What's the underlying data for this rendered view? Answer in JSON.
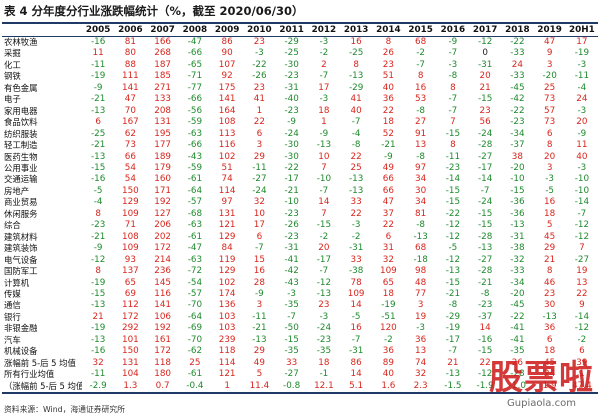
{
  "title": "表 4 分年度分行业涨跌幅统计（%，截至 2020/06/30）",
  "colors": {
    "pos": "#d9251d",
    "neg": "#1f8a2e",
    "neutral": "#222222"
  },
  "table": {
    "headers": [
      "",
      "2005",
      "2006",
      "2007",
      "2008",
      "2009",
      "2010",
      "2011",
      "2012",
      "2013",
      "2014",
      "2015",
      "2016",
      "2017",
      "2018",
      "2019",
      "20H1"
    ],
    "rows": [
      {
        "label": "农林牧渔",
        "values": [
          "-16",
          "81",
          "166",
          "-47",
          "86",
          "23",
          "-29",
          "-3",
          "16",
          "8",
          "68",
          "-9",
          "-12",
          "-22",
          "47",
          "17"
        ]
      },
      {
        "label": "采掘",
        "values": [
          "11",
          "80",
          "268",
          "-66",
          "90",
          "-3",
          "-25",
          "-2",
          "-25",
          "26",
          "-2",
          "-7",
          "0",
          "-33",
          "9",
          "-19"
        ]
      },
      {
        "label": "化工",
        "values": [
          "-11",
          "88",
          "187",
          "-65",
          "107",
          "-22",
          "-30",
          "2",
          "8",
          "23",
          "-7",
          "-3",
          "-31",
          "24",
          "3",
          "-3"
        ]
      },
      {
        "label": "钢铁",
        "values": [
          "-19",
          "111",
          "185",
          "-71",
          "92",
          "-26",
          "-23",
          "-7",
          "-13",
          "51",
          "8",
          "-8",
          "20",
          "-33",
          "-20",
          "-11"
        ]
      },
      {
        "label": "有色金属",
        "values": [
          "-9",
          "141",
          "271",
          "-77",
          "175",
          "23",
          "-31",
          "17",
          "-29",
          "40",
          "16",
          "8",
          "21",
          "-45",
          "25",
          "-4"
        ]
      },
      {
        "label": "电子",
        "values": [
          "-21",
          "47",
          "133",
          "-66",
          "141",
          "41",
          "-40",
          "-3",
          "41",
          "36",
          "53",
          "-7",
          "-15",
          "-42",
          "73",
          "24"
        ]
      },
      {
        "label": "家用电器",
        "values": [
          "-13",
          "70",
          "208",
          "-56",
          "164",
          "1",
          "-23",
          "18",
          "40",
          "22",
          "-8",
          "-7",
          "23",
          "-22",
          "57",
          "-3"
        ]
      },
      {
        "label": "食品饮料",
        "values": [
          "6",
          "167",
          "131",
          "-59",
          "108",
          "22",
          "-9",
          "1",
          "-7",
          "18",
          "27",
          "7",
          "56",
          "-23",
          "73",
          "20"
        ]
      },
      {
        "label": "纺织服装",
        "values": [
          "-25",
          "62",
          "195",
          "-63",
          "113",
          "6",
          "-24",
          "-9",
          "-4",
          "52",
          "91",
          "-15",
          "-24",
          "-34",
          "6",
          "-9"
        ]
      },
      {
        "label": "轻工制造",
        "values": [
          "-21",
          "73",
          "177",
          "-66",
          "116",
          "3",
          "-30",
          "-13",
          "-8",
          "-21",
          "13",
          "8",
          "-28",
          "-37",
          "8",
          "11"
        ]
      },
      {
        "label": "医药生物",
        "values": [
          "-13",
          "66",
          "189",
          "-43",
          "102",
          "29",
          "-30",
          "10",
          "22",
          "-9",
          "-8",
          "-11",
          "-27",
          "38",
          "20",
          "40"
        ]
      },
      {
        "label": "公用事业",
        "values": [
          "-15",
          "54",
          "179",
          "-59",
          "51",
          "-11",
          "-22",
          "7",
          "25",
          "49",
          "97",
          "-23",
          "-17",
          "-20",
          "3",
          "-3"
        ]
      },
      {
        "label": "交通运输",
        "values": [
          "-16",
          "54",
          "160",
          "-61",
          "74",
          "-27",
          "-17",
          "-10",
          "-13",
          "66",
          "34",
          "-14",
          "-14",
          "-10",
          "-3",
          "-10"
        ]
      },
      {
        "label": "房地产",
        "values": [
          "-5",
          "150",
          "171",
          "-64",
          "114",
          "-24",
          "-21",
          "-7",
          "-13",
          "66",
          "30",
          "-15",
          "-7",
          "-15",
          "-5",
          "-10"
        ]
      },
      {
        "label": "商业贸易",
        "values": [
          "-4",
          "129",
          "192",
          "-57",
          "97",
          "32",
          "-10",
          "14",
          "33",
          "47",
          "34",
          "-15",
          "-24",
          "-36",
          "16",
          "-14"
        ]
      },
      {
        "label": "休闲服务",
        "values": [
          "8",
          "109",
          "127",
          "-68",
          "131",
          "10",
          "-23",
          "7",
          "22",
          "37",
          "81",
          "-22",
          "-15",
          "-36",
          "18",
          "-7"
        ]
      },
      {
        "label": "综合",
        "values": [
          "-23",
          "71",
          "206",
          "-63",
          "121",
          "17",
          "-26",
          "-15",
          "-3",
          "22",
          "-8",
          "-12",
          "-15",
          "-13",
          "5",
          "-12"
        ]
      },
      {
        "label": "建筑材料",
        "values": [
          "-21",
          "108",
          "202",
          "-61",
          "129",
          "6",
          "-23",
          "-2",
          "-2",
          "6",
          "-13",
          "-12",
          "-28",
          "-31",
          "45",
          "-12"
        ]
      },
      {
        "label": "建筑装饰",
        "values": [
          "-9",
          "109",
          "172",
          "-47",
          "84",
          "-7",
          "-31",
          "20",
          "-31",
          "31",
          "68",
          "-5",
          "-13",
          "-38",
          "29",
          "7"
        ]
      },
      {
        "label": "电气设备",
        "values": [
          "-12",
          "93",
          "214",
          "-63",
          "119",
          "15",
          "-41",
          "-17",
          "33",
          "32",
          "-18",
          "-12",
          "-27",
          "-32",
          "21",
          "-27"
        ]
      },
      {
        "label": "国防军工",
        "values": [
          "8",
          "137",
          "236",
          "-72",
          "129",
          "16",
          "-42",
          "-7",
          "-38",
          "109",
          "98",
          "-13",
          "-28",
          "-33",
          "8",
          "19"
        ]
      },
      {
        "label": "计算机",
        "values": [
          "-19",
          "65",
          "145",
          "-54",
          "102",
          "28",
          "-43",
          "-12",
          "78",
          "65",
          "48",
          "-15",
          "-21",
          "-34",
          "46",
          "13"
        ]
      },
      {
        "label": "传媒",
        "values": [
          "-15",
          "69",
          "116",
          "-57",
          "174",
          "-9",
          "-3",
          "-13",
          "109",
          "18",
          "77",
          "-21",
          "-8",
          "-20",
          "23",
          "22"
        ]
      },
      {
        "label": "通信",
        "values": [
          "-13",
          "112",
          "141",
          "-70",
          "136",
          "3",
          "-35",
          "23",
          "14",
          "-19",
          "3",
          "-8",
          "-23",
          "-45",
          "30",
          "9"
        ]
      },
      {
        "label": "银行",
        "values": [
          "21",
          "172",
          "106",
          "-64",
          "103",
          "-11",
          "-7",
          "-3",
          "-5",
          "-51",
          "19",
          "-29",
          "-37",
          "-22",
          "-13",
          "-14"
        ]
      },
      {
        "label": "非银金融",
        "values": [
          "-19",
          "292",
          "192",
          "-69",
          "103",
          "-21",
          "-50",
          "-24",
          "16",
          "120",
          "-3",
          "-19",
          "14",
          "-41",
          "36",
          "-12"
        ]
      },
      {
        "label": "汽车",
        "values": [
          "-13",
          "101",
          "161",
          "-70",
          "239",
          "-13",
          "-15",
          "-23",
          "-7",
          "-2",
          "36",
          "-17",
          "-16",
          "-41",
          "6",
          "-2"
        ]
      },
      {
        "label": "机械设备",
        "values": [
          "-16",
          "150",
          "172",
          "-62",
          "118",
          "29",
          "-35",
          "-35",
          "-31",
          "36",
          "13",
          "-7",
          "-15",
          "-35",
          "18",
          "6"
        ]
      },
      {
        "label": "涨幅前 5-后 5 均值",
        "values": [
          "32",
          "131",
          "118",
          "25",
          "114",
          "49",
          "33",
          "18",
          "86",
          "89",
          "74",
          "21",
          "22",
          "26",
          "45",
          "39"
        ]
      },
      {
        "label": "所有行业均值",
        "values": [
          "-11",
          "104",
          "180",
          "-61",
          "121",
          "5",
          "-27",
          "-1",
          "14",
          "40",
          "32",
          "-13",
          "-12",
          "-28",
          "24",
          "1"
        ]
      },
      {
        "label": "（涨幅前 5-后 5 均值）/所有行业均值",
        "values": [
          "-2.9",
          "1.3",
          "0.7",
          "-0.4",
          "1",
          "11.4",
          "-0.8",
          "12.1",
          "5.1",
          "1.6",
          "2.3",
          "-1.5",
          "-1.9",
          "-1.0",
          "1.9",
          "47.4"
        ]
      }
    ]
  },
  "source": "资料来源：Wind，海通证券研究所",
  "watermark": {
    "text": "股票啦",
    "url": "Gupiaola.com"
  }
}
